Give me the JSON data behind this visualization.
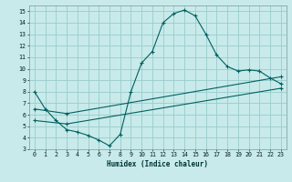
{
  "xlabel": "Humidex (Indice chaleur)",
  "xlim": [
    -0.5,
    23.5
  ],
  "ylim": [
    3,
    15.5
  ],
  "xticks": [
    0,
    1,
    2,
    3,
    4,
    5,
    6,
    7,
    8,
    9,
    10,
    11,
    12,
    13,
    14,
    15,
    16,
    17,
    18,
    19,
    20,
    21,
    22,
    23
  ],
  "yticks": [
    3,
    4,
    5,
    6,
    7,
    8,
    9,
    10,
    11,
    12,
    13,
    14,
    15
  ],
  "bg_color": "#c8eaea",
  "line_color": "#006060",
  "grid_color": "#99cccc",
  "line1_x": [
    0,
    1,
    2,
    3,
    4,
    5,
    6,
    7,
    8,
    9,
    10,
    11,
    12,
    13,
    14,
    15,
    16,
    17,
    18,
    19,
    20,
    21,
    22,
    23
  ],
  "line1_y": [
    8.0,
    6.5,
    5.5,
    4.7,
    4.5,
    4.2,
    3.8,
    3.3,
    4.3,
    8.0,
    10.5,
    11.5,
    14.0,
    14.8,
    15.1,
    14.6,
    13.0,
    11.2,
    10.2,
    9.8,
    9.9,
    9.8,
    9.2,
    8.7
  ],
  "line2_x": [
    0,
    3,
    23
  ],
  "line2_y": [
    6.5,
    6.1,
    9.3
  ],
  "line3_x": [
    0,
    3,
    23
  ],
  "line3_y": [
    5.5,
    5.2,
    8.3
  ]
}
